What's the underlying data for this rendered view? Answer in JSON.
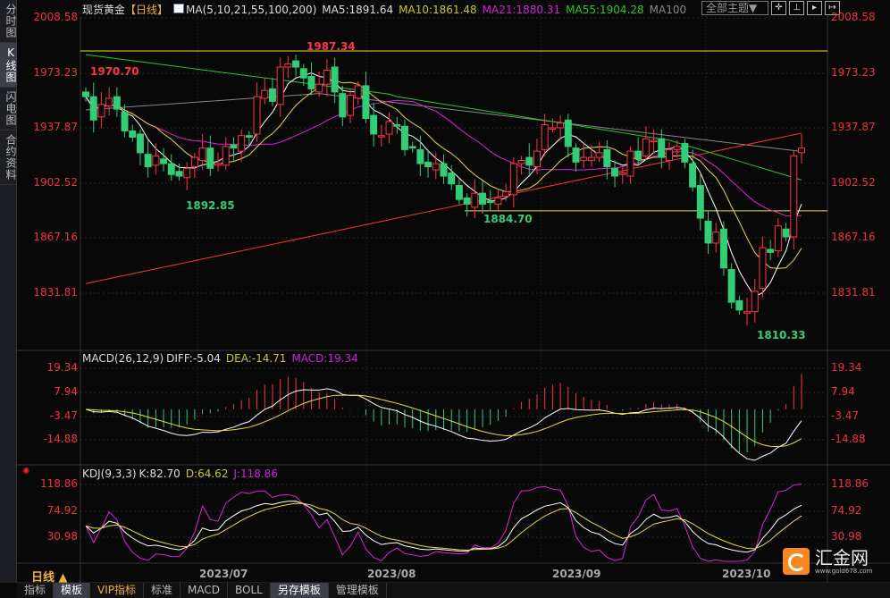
{
  "sidebar": {
    "tabs": [
      "分时图",
      "K线图",
      "闪电图",
      "合约资料"
    ],
    "active": 1
  },
  "header": {
    "symbol": "现货黄金",
    "period_tag": "【日线】",
    "ma_label": "MA(5,10,21,55,100,200)",
    "ma5": "MA5:1891.64",
    "ma10": "MA10:1861.48",
    "ma21": "MA21:1880.31",
    "ma55": "MA55:1904.28",
    "ma100": "MA100"
  },
  "toolbar": {
    "theme": "全部主题▼",
    "icons": [
      "crosshair-icon",
      "zoom-in-icon",
      "zoom-out-icon",
      "scroll-right-icon"
    ]
  },
  "price_axis": [
    "2008.58",
    "1973.23",
    "1937.87",
    "1902.52",
    "1867.16",
    "1831.81"
  ],
  "annotations": {
    "high": "1987.34",
    "left_high": "1970.70",
    "low1": "1892.85",
    "low2": "1884.70",
    "low3": "1810.33"
  },
  "macd": {
    "label": "MACD(26,12,9)",
    "diff": "DIFF:-5.04",
    "dea": "DEA:-14.71",
    "macd": "MACD:19.34",
    "axis": [
      "19.34",
      "7.94",
      "-3.47",
      "-14.88"
    ]
  },
  "kdj": {
    "label": "KDJ(9,3,3)",
    "k": "K:82.70",
    "d": "D:64.62",
    "j": "J:118.86",
    "axis": [
      "118.86",
      "74.92",
      "30.98"
    ]
  },
  "dates": [
    "2023/07",
    "2023/08",
    "2023/09",
    "2023/10"
  ],
  "period": "日线 ▲",
  "bottom_tabs": [
    "指标",
    "模板",
    "VIP指标",
    "标准",
    "MACD",
    "BOLL",
    "另存模板",
    "管理模板"
  ],
  "bottom_selected": [
    1,
    6
  ],
  "logo": {
    "name": "汇金网",
    "url": "www.gold678.com"
  },
  "colors": {
    "up": "#ff3344",
    "down": "#33cc77",
    "ma5": "#ffffff",
    "ma10": "#e8e020",
    "ma21": "#dd22dd",
    "ma55": "#22cc22",
    "ma100": "#888888",
    "ma200": "#ff3333"
  },
  "chart_data": {
    "type": "candlestick",
    "ylim": [
      1810,
      2010
    ],
    "closes": [
      1958,
      1943,
      1953,
      1957,
      1950,
      1936,
      1932,
      1922,
      1913,
      1920,
      1915,
      1908,
      1907,
      1912,
      1919,
      1925,
      1912,
      1915,
      1926,
      1925,
      1933,
      1932,
      1958,
      1962,
      1955,
      1977,
      1979,
      1977,
      1970,
      1963,
      1966,
      1975,
      1961,
      1945,
      1959,
      1965,
      1944,
      1934,
      1933,
      1942,
      1939,
      1924,
      1925,
      1915,
      1913,
      1915,
      1907,
      1902,
      1892,
      1889,
      1896,
      1889,
      1890,
      1893,
      1897,
      1915,
      1917,
      1914,
      1923,
      1940,
      1938,
      1941,
      1926,
      1916,
      1919,
      1919,
      1922,
      1913,
      1907,
      1909,
      1923,
      1918,
      1931,
      1930,
      1919,
      1924,
      1926,
      1916,
      1900,
      1880,
      1864,
      1871,
      1848,
      1826,
      1821,
      1820,
      1833,
      1861,
      1858,
      1875,
      1868,
      1920,
      1925
    ]
  }
}
